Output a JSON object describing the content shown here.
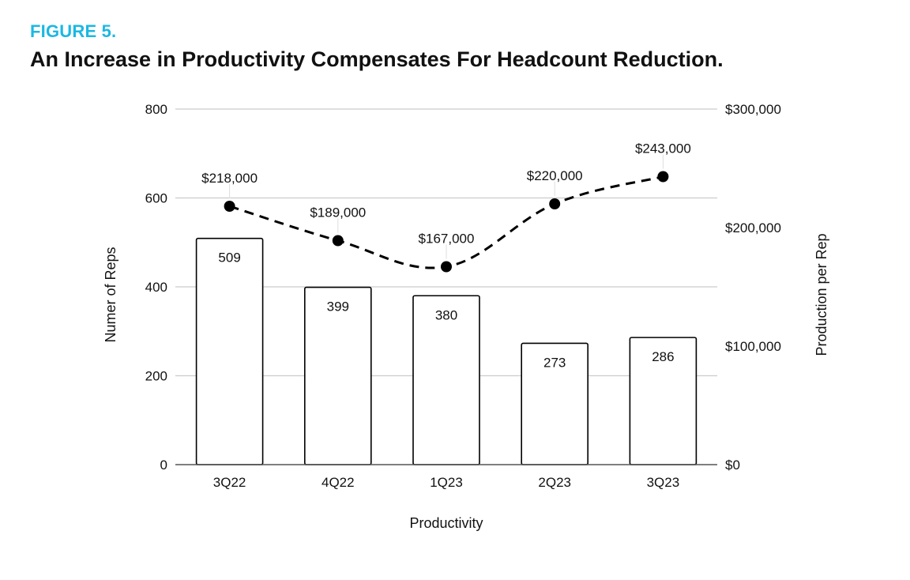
{
  "figure_label": "FIGURE 5.",
  "title": "An Increase in Productivity Compensates For Headcount Reduction.",
  "colors": {
    "accent": "#1bb8e3",
    "grid": "#cccccc",
    "bar_fill": "#ffffff",
    "ink": "#000000"
  },
  "chart_data": {
    "type": "bar",
    "categories": [
      "3Q22",
      "4Q22",
      "1Q23",
      "2Q23",
      "3Q23"
    ],
    "series": [
      {
        "values": [
          509,
          399,
          380,
          273,
          286
        ],
        "axis": "left",
        "kind": "bar"
      },
      {
        "values": [
          218000,
          189000,
          167000,
          220000,
          243000
        ],
        "axis": "right",
        "kind": "line",
        "style": "dashed"
      }
    ],
    "bar_labels": [
      "509",
      "399",
      "380",
      "273",
      "286"
    ],
    "line_labels": [
      "$218,000",
      "$189,000",
      "$167,000",
      "$220,000",
      "$243,000"
    ],
    "xlabel": "Productivity",
    "ylabel_left": "Numer of Reps",
    "ylabel_right": "Production per Rep",
    "ylim_left": [
      0,
      800
    ],
    "ylim_right": [
      0,
      300000
    ],
    "left_ticks": [
      "0",
      "200",
      "400",
      "600",
      "800"
    ],
    "right_ticks": [
      "$0",
      "$100,000",
      "$200,000",
      "$300,000"
    ],
    "grid": true,
    "legend": "none"
  }
}
